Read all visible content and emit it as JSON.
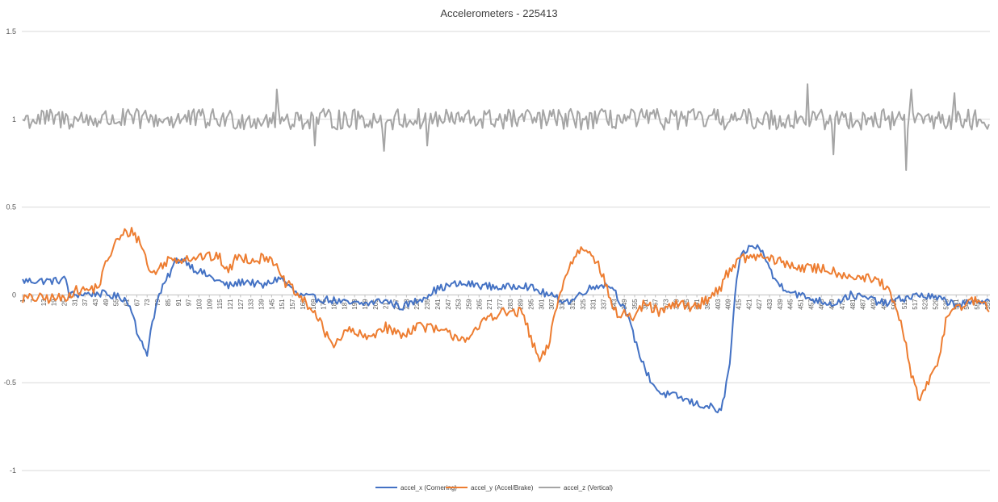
{
  "chart_data": {
    "type": "line",
    "title": "Accelerometers - 225413",
    "xlabel": "",
    "ylabel": "",
    "ylim": [
      -1,
      1.5
    ],
    "yticks": [
      1.5,
      1,
      0.5,
      0,
      -0.5,
      -1
    ],
    "ytick_labels": [
      "1.5",
      "1",
      "0.5",
      "0",
      "-0.5",
      "-1"
    ],
    "x_count": 560,
    "xtick_labels": [
      "1",
      "7",
      "13",
      "19",
      "25",
      "31",
      "37",
      "43",
      "49",
      "55",
      "61",
      "67",
      "73",
      "79",
      "85",
      "91",
      "97",
      "103",
      "109",
      "115",
      "121",
      "127",
      "133",
      "139",
      "145",
      "151",
      "157",
      "163",
      "169",
      "175",
      "181",
      "187",
      "193",
      "199",
      "205",
      "211",
      "217",
      "223",
      "229",
      "235",
      "241",
      "247",
      "253",
      "259",
      "265",
      "271",
      "277",
      "283",
      "289",
      "295",
      "301",
      "307",
      "313",
      "319",
      "325",
      "331",
      "337",
      "343",
      "349",
      "355",
      "361",
      "367",
      "373",
      "379",
      "385",
      "391",
      "397",
      "403",
      "409",
      "415",
      "421",
      "427",
      "433",
      "439",
      "445",
      "451",
      "457",
      "463",
      "469",
      "475",
      "481",
      "487",
      "493",
      "499",
      "505",
      "511",
      "517",
      "523",
      "529",
      "535",
      "541",
      "547",
      "553",
      "559"
    ],
    "grid": true,
    "legend_position": "bottom",
    "series": [
      {
        "name": "accel_x (Cornering)",
        "color": "#4472C4",
        "knots": [
          [
            1,
            0.08
          ],
          [
            20,
            0.08
          ],
          [
            26,
            0.09
          ],
          [
            28,
            0.0
          ],
          [
            45,
            0.01
          ],
          [
            55,
            -0.01
          ],
          [
            60,
            -0.02
          ],
          [
            65,
            -0.1
          ],
          [
            68,
            -0.25
          ],
          [
            73,
            -0.33
          ],
          [
            76,
            -0.15
          ],
          [
            80,
            0.0
          ],
          [
            85,
            0.1
          ],
          [
            90,
            0.2
          ],
          [
            95,
            0.2
          ],
          [
            100,
            0.15
          ],
          [
            110,
            0.1
          ],
          [
            120,
            0.05
          ],
          [
            130,
            0.08
          ],
          [
            140,
            0.05
          ],
          [
            150,
            0.1
          ],
          [
            160,
            0.0
          ],
          [
            170,
            -0.02
          ],
          [
            180,
            -0.03
          ],
          [
            190,
            -0.05
          ],
          [
            200,
            -0.05
          ],
          [
            210,
            -0.03
          ],
          [
            220,
            -0.07
          ],
          [
            230,
            -0.03
          ],
          [
            240,
            0.03
          ],
          [
            250,
            0.06
          ],
          [
            260,
            0.06
          ],
          [
            270,
            0.05
          ],
          [
            280,
            0.04
          ],
          [
            290,
            0.06
          ],
          [
            300,
            0.02
          ],
          [
            310,
            -0.02
          ],
          [
            318,
            -0.04
          ],
          [
            325,
            0.02
          ],
          [
            335,
            0.06
          ],
          [
            342,
            0.05
          ],
          [
            350,
            -0.1
          ],
          [
            355,
            -0.25
          ],
          [
            360,
            -0.4
          ],
          [
            365,
            -0.5
          ],
          [
            370,
            -0.56
          ],
          [
            380,
            -0.58
          ],
          [
            390,
            -0.62
          ],
          [
            400,
            -0.64
          ],
          [
            405,
            -0.67
          ],
          [
            410,
            -0.4
          ],
          [
            413,
            0.0
          ],
          [
            416,
            0.2
          ],
          [
            420,
            0.26
          ],
          [
            425,
            0.28
          ],
          [
            430,
            0.23
          ],
          [
            435,
            0.1
          ],
          [
            440,
            0.05
          ],
          [
            450,
            0.0
          ],
          [
            460,
            -0.03
          ],
          [
            470,
            -0.05
          ],
          [
            480,
            0.0
          ],
          [
            490,
            -0.02
          ],
          [
            500,
            -0.05
          ],
          [
            510,
            -0.02
          ],
          [
            520,
            0.0
          ],
          [
            530,
            -0.02
          ],
          [
            540,
            -0.05
          ],
          [
            550,
            -0.05
          ],
          [
            560,
            -0.02
          ]
        ],
        "noise": 0.022
      },
      {
        "name": "accel_y (Accel/Brake)",
        "color": "#ED7D31",
        "knots": [
          [
            1,
            -0.02
          ],
          [
            25,
            -0.02
          ],
          [
            30,
            0.02
          ],
          [
            40,
            0.03
          ],
          [
            45,
            0.05
          ],
          [
            50,
            0.2
          ],
          [
            55,
            0.3
          ],
          [
            60,
            0.35
          ],
          [
            65,
            0.36
          ],
          [
            70,
            0.28
          ],
          [
            75,
            0.12
          ],
          [
            80,
            0.15
          ],
          [
            85,
            0.2
          ],
          [
            95,
            0.21
          ],
          [
            105,
            0.22
          ],
          [
            115,
            0.21
          ],
          [
            120,
            0.13
          ],
          [
            125,
            0.22
          ],
          [
            135,
            0.2
          ],
          [
            145,
            0.22
          ],
          [
            150,
            0.1
          ],
          [
            155,
            0.05
          ],
          [
            160,
            0.0
          ],
          [
            165,
            -0.05
          ],
          [
            170,
            -0.1
          ],
          [
            175,
            -0.2
          ],
          [
            180,
            -0.28
          ],
          [
            190,
            -0.2
          ],
          [
            200,
            -0.25
          ],
          [
            210,
            -0.18
          ],
          [
            220,
            -0.23
          ],
          [
            230,
            -0.17
          ],
          [
            240,
            -0.2
          ],
          [
            250,
            -0.23
          ],
          [
            260,
            -0.25
          ],
          [
            270,
            -0.12
          ],
          [
            280,
            -0.1
          ],
          [
            290,
            -0.1
          ],
          [
            295,
            -0.25
          ],
          [
            300,
            -0.38
          ],
          [
            305,
            -0.3
          ],
          [
            310,
            -0.05
          ],
          [
            315,
            0.1
          ],
          [
            320,
            0.22
          ],
          [
            325,
            0.27
          ],
          [
            330,
            0.25
          ],
          [
            335,
            0.15
          ],
          [
            340,
            0.0
          ],
          [
            345,
            -0.12
          ],
          [
            350,
            -0.1
          ],
          [
            355,
            -0.15
          ],
          [
            360,
            -0.05
          ],
          [
            370,
            -0.1
          ],
          [
            380,
            -0.05
          ],
          [
            390,
            -0.07
          ],
          [
            400,
            0.0
          ],
          [
            405,
            0.05
          ],
          [
            410,
            0.15
          ],
          [
            415,
            0.2
          ],
          [
            425,
            0.22
          ],
          [
            435,
            0.2
          ],
          [
            445,
            0.17
          ],
          [
            455,
            0.15
          ],
          [
            465,
            0.15
          ],
          [
            475,
            0.12
          ],
          [
            485,
            0.1
          ],
          [
            495,
            0.08
          ],
          [
            500,
            0.05
          ],
          [
            505,
            -0.05
          ],
          [
            510,
            -0.2
          ],
          [
            515,
            -0.45
          ],
          [
            520,
            -0.6
          ],
          [
            525,
            -0.5
          ],
          [
            530,
            -0.4
          ],
          [
            535,
            -0.15
          ],
          [
            540,
            -0.05
          ],
          [
            545,
            -0.07
          ],
          [
            550,
            -0.04
          ],
          [
            555,
            -0.03
          ],
          [
            560,
            -0.08
          ]
        ],
        "noise": 0.03
      },
      {
        "name": "accel_z (Vertical)",
        "color": "#A5A5A5",
        "knots": [
          [
            1,
            1.0
          ],
          [
            560,
            1.0
          ]
        ],
        "noise": 0.06,
        "spikes": [
          [
            148,
            1.17
          ],
          [
            170,
            0.85
          ],
          [
            210,
            0.82
          ],
          [
            235,
            0.85
          ],
          [
            455,
            1.2
          ],
          [
            470,
            0.8
          ],
          [
            512,
            0.71
          ],
          [
            515,
            1.17
          ],
          [
            540,
            1.15
          ]
        ]
      }
    ]
  }
}
